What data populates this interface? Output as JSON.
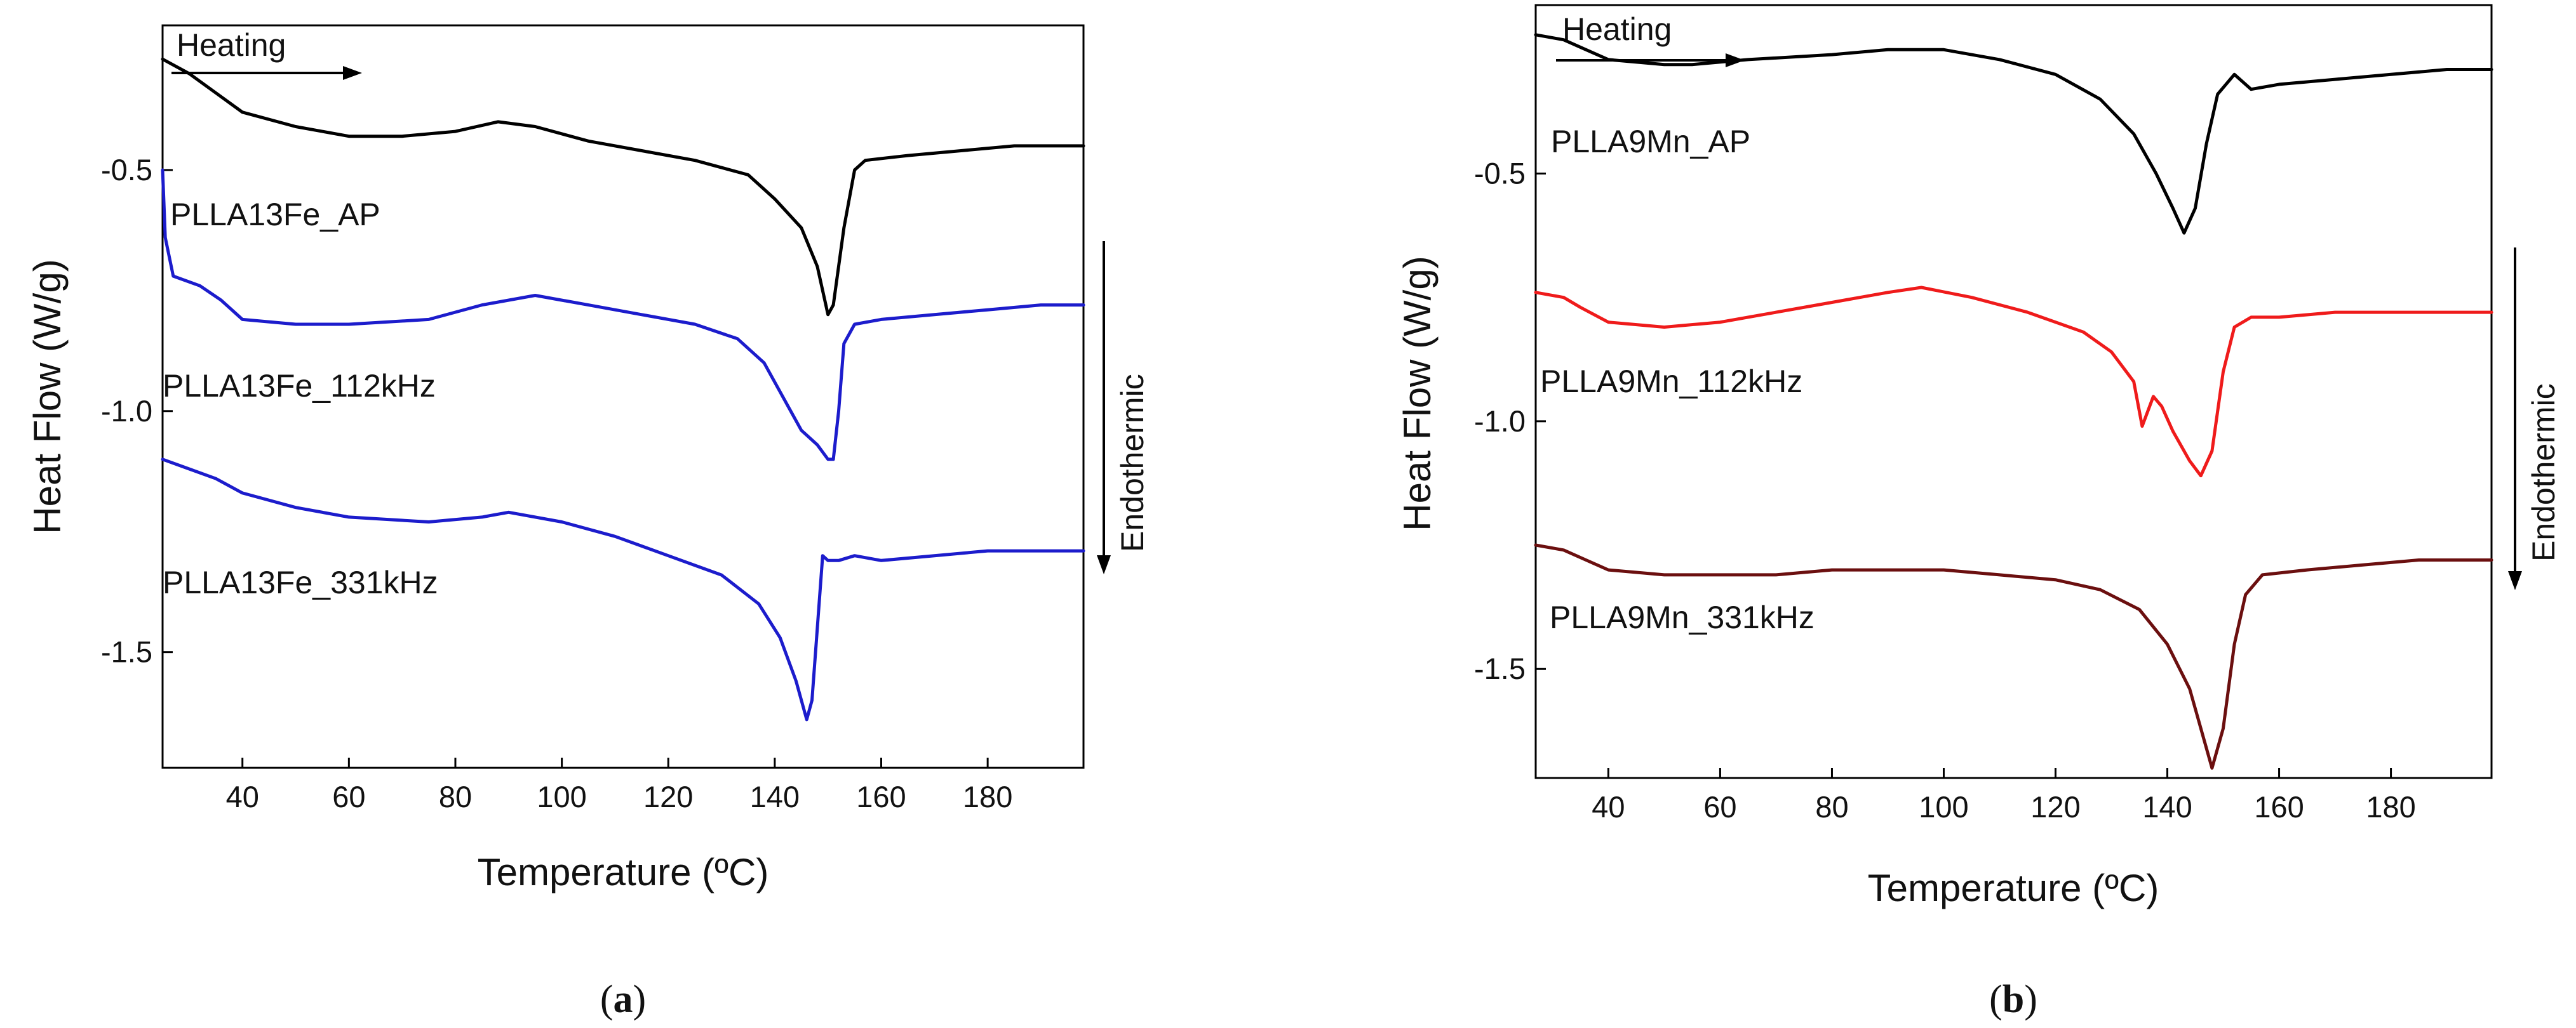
{
  "colors": {
    "black": "#000000",
    "blue": "#1c1ccc",
    "red": "#ef1b1b",
    "darkred": "#6b0f0f"
  },
  "chart_data": [
    {
      "type": "line",
      "panel": "a",
      "caption": "(a)",
      "caption_bold": "a",
      "title": "",
      "xlabel": "Temperature (ºC)",
      "ylabel": "Heat Flow (W/g)",
      "xlim": [
        25,
        198
      ],
      "ylim": [
        -1.74,
        -0.2
      ],
      "x_ticks": [
        40,
        60,
        80,
        100,
        120,
        140,
        160,
        180
      ],
      "y_ticks": [
        -0.5,
        -1.0,
        -1.5
      ],
      "y_tick_labels": [
        "-0.5",
        "-1.0",
        "-1.5"
      ],
      "grid": false,
      "heating_label": "Heating",
      "endo_label": "Endothermic",
      "series": [
        {
          "name": "PLLA13Fe_AP",
          "color": "#000000",
          "points": [
            [
              25,
              -0.27
            ],
            [
              30,
              -0.3
            ],
            [
              35,
              -0.34
            ],
            [
              40,
              -0.38
            ],
            [
              50,
              -0.41
            ],
            [
              60,
              -0.43
            ],
            [
              70,
              -0.43
            ],
            [
              80,
              -0.42
            ],
            [
              88,
              -0.4
            ],
            [
              95,
              -0.41
            ],
            [
              105,
              -0.44
            ],
            [
              115,
              -0.46
            ],
            [
              125,
              -0.48
            ],
            [
              135,
              -0.51
            ],
            [
              140,
              -0.56
            ],
            [
              145,
              -0.62
            ],
            [
              148,
              -0.7
            ],
            [
              150,
              -0.8
            ],
            [
              151,
              -0.78
            ],
            [
              153,
              -0.62
            ],
            [
              155,
              -0.5
            ],
            [
              157,
              -0.48
            ],
            [
              165,
              -0.47
            ],
            [
              175,
              -0.46
            ],
            [
              185,
              -0.45
            ],
            [
              198,
              -0.45
            ]
          ]
        },
        {
          "name": "PLLA13Fe_112kHz",
          "color": "#1c1ccc",
          "points": [
            [
              25,
              -0.5
            ],
            [
              25.5,
              -0.64
            ],
            [
              27,
              -0.72
            ],
            [
              32,
              -0.74
            ],
            [
              36,
              -0.77
            ],
            [
              40,
              -0.81
            ],
            [
              50,
              -0.82
            ],
            [
              60,
              -0.82
            ],
            [
              75,
              -0.81
            ],
            [
              85,
              -0.78
            ],
            [
              95,
              -0.76
            ],
            [
              105,
              -0.78
            ],
            [
              115,
              -0.8
            ],
            [
              125,
              -0.82
            ],
            [
              133,
              -0.85
            ],
            [
              138,
              -0.9
            ],
            [
              142,
              -0.98
            ],
            [
              145,
              -1.04
            ],
            [
              148,
              -1.07
            ],
            [
              150,
              -1.1
            ],
            [
              151,
              -1.1
            ],
            [
              152,
              -1.0
            ],
            [
              153,
              -0.86
            ],
            [
              155,
              -0.82
            ],
            [
              160,
              -0.81
            ],
            [
              170,
              -0.8
            ],
            [
              180,
              -0.79
            ],
            [
              190,
              -0.78
            ],
            [
              198,
              -0.78
            ]
          ]
        },
        {
          "name": "PLLA13Fe_331kHz",
          "color": "#1c1ccc",
          "points": [
            [
              25,
              -1.1
            ],
            [
              30,
              -1.12
            ],
            [
              35,
              -1.14
            ],
            [
              40,
              -1.17
            ],
            [
              50,
              -1.2
            ],
            [
              60,
              -1.22
            ],
            [
              75,
              -1.23
            ],
            [
              85,
              -1.22
            ],
            [
              90,
              -1.21
            ],
            [
              100,
              -1.23
            ],
            [
              110,
              -1.26
            ],
            [
              120,
              -1.3
            ],
            [
              130,
              -1.34
            ],
            [
              137,
              -1.4
            ],
            [
              141,
              -1.47
            ],
            [
              144,
              -1.56
            ],
            [
              146,
              -1.64
            ],
            [
              147,
              -1.6
            ],
            [
              148,
              -1.45
            ],
            [
              149,
              -1.3
            ],
            [
              150,
              -1.31
            ],
            [
              152,
              -1.31
            ],
            [
              155,
              -1.3
            ],
            [
              160,
              -1.31
            ],
            [
              170,
              -1.3
            ],
            [
              180,
              -1.29
            ],
            [
              198,
              -1.29
            ]
          ]
        }
      ]
    },
    {
      "type": "line",
      "panel": "b",
      "caption": "(b)",
      "caption_bold": "b",
      "title": "",
      "xlabel": "Temperature (ºC)",
      "ylabel": "Heat Flow (W/g)",
      "xlim": [
        27,
        198
      ],
      "ylim": [
        -1.72,
        -0.16
      ],
      "x_ticks": [
        40,
        60,
        80,
        100,
        120,
        140,
        160,
        180
      ],
      "y_ticks": [
        -0.5,
        -1.0,
        -1.5
      ],
      "y_tick_labels": [
        "-0.5",
        "-1.0",
        "-1.5"
      ],
      "grid": false,
      "heating_label": "Heating",
      "endo_label": "Endothermic",
      "series": [
        {
          "name": "PLLA9Mn_AP",
          "color": "#000000",
          "points": [
            [
              27,
              -0.22
            ],
            [
              32,
              -0.23
            ],
            [
              36,
              -0.25
            ],
            [
              40,
              -0.27
            ],
            [
              50,
              -0.28
            ],
            [
              55,
              -0.28
            ],
            [
              65,
              -0.27
            ],
            [
              80,
              -0.26
            ],
            [
              90,
              -0.25
            ],
            [
              100,
              -0.25
            ],
            [
              110,
              -0.27
            ],
            [
              120,
              -0.3
            ],
            [
              128,
              -0.35
            ],
            [
              134,
              -0.42
            ],
            [
              138,
              -0.5
            ],
            [
              141,
              -0.57
            ],
            [
              143,
              -0.62
            ],
            [
              145,
              -0.57
            ],
            [
              147,
              -0.44
            ],
            [
              149,
              -0.34
            ],
            [
              152,
              -0.3
            ],
            [
              155,
              -0.33
            ],
            [
              160,
              -0.32
            ],
            [
              170,
              -0.31
            ],
            [
              180,
              -0.3
            ],
            [
              190,
              -0.29
            ],
            [
              198,
              -0.29
            ]
          ]
        },
        {
          "name": "PLLA9Mn_112kHz",
          "color": "#ef1b1b",
          "points": [
            [
              27,
              -0.74
            ],
            [
              32,
              -0.75
            ],
            [
              35,
              -0.77
            ],
            [
              40,
              -0.8
            ],
            [
              50,
              -0.81
            ],
            [
              60,
              -0.8
            ],
            [
              70,
              -0.78
            ],
            [
              80,
              -0.76
            ],
            [
              90,
              -0.74
            ],
            [
              96,
              -0.73
            ],
            [
              105,
              -0.75
            ],
            [
              115,
              -0.78
            ],
            [
              125,
              -0.82
            ],
            [
              130,
              -0.86
            ],
            [
              134,
              -0.92
            ],
            [
              135.5,
              -1.01
            ],
            [
              136.5,
              -0.98
            ],
            [
              137.5,
              -0.95
            ],
            [
              139,
              -0.97
            ],
            [
              141,
              -1.02
            ],
            [
              144,
              -1.08
            ],
            [
              146,
              -1.11
            ],
            [
              148,
              -1.06
            ],
            [
              150,
              -0.9
            ],
            [
              152,
              -0.81
            ],
            [
              155,
              -0.79
            ],
            [
              160,
              -0.79
            ],
            [
              170,
              -0.78
            ],
            [
              180,
              -0.78
            ],
            [
              198,
              -0.78
            ]
          ]
        },
        {
          "name": "PLLA9Mn_331kHz",
          "color": "#6b0f0f",
          "points": [
            [
              27,
              -1.25
            ],
            [
              32,
              -1.26
            ],
            [
              36,
              -1.28
            ],
            [
              40,
              -1.3
            ],
            [
              50,
              -1.31
            ],
            [
              60,
              -1.31
            ],
            [
              70,
              -1.31
            ],
            [
              80,
              -1.3
            ],
            [
              90,
              -1.3
            ],
            [
              100,
              -1.3
            ],
            [
              110,
              -1.31
            ],
            [
              120,
              -1.32
            ],
            [
              128,
              -1.34
            ],
            [
              135,
              -1.38
            ],
            [
              140,
              -1.45
            ],
            [
              144,
              -1.54
            ],
            [
              146,
              -1.62
            ],
            [
              148,
              -1.7
            ],
            [
              150,
              -1.62
            ],
            [
              152,
              -1.45
            ],
            [
              154,
              -1.35
            ],
            [
              157,
              -1.31
            ],
            [
              165,
              -1.3
            ],
            [
              175,
              -1.29
            ],
            [
              185,
              -1.28
            ],
            [
              198,
              -1.28
            ]
          ]
        }
      ]
    }
  ]
}
